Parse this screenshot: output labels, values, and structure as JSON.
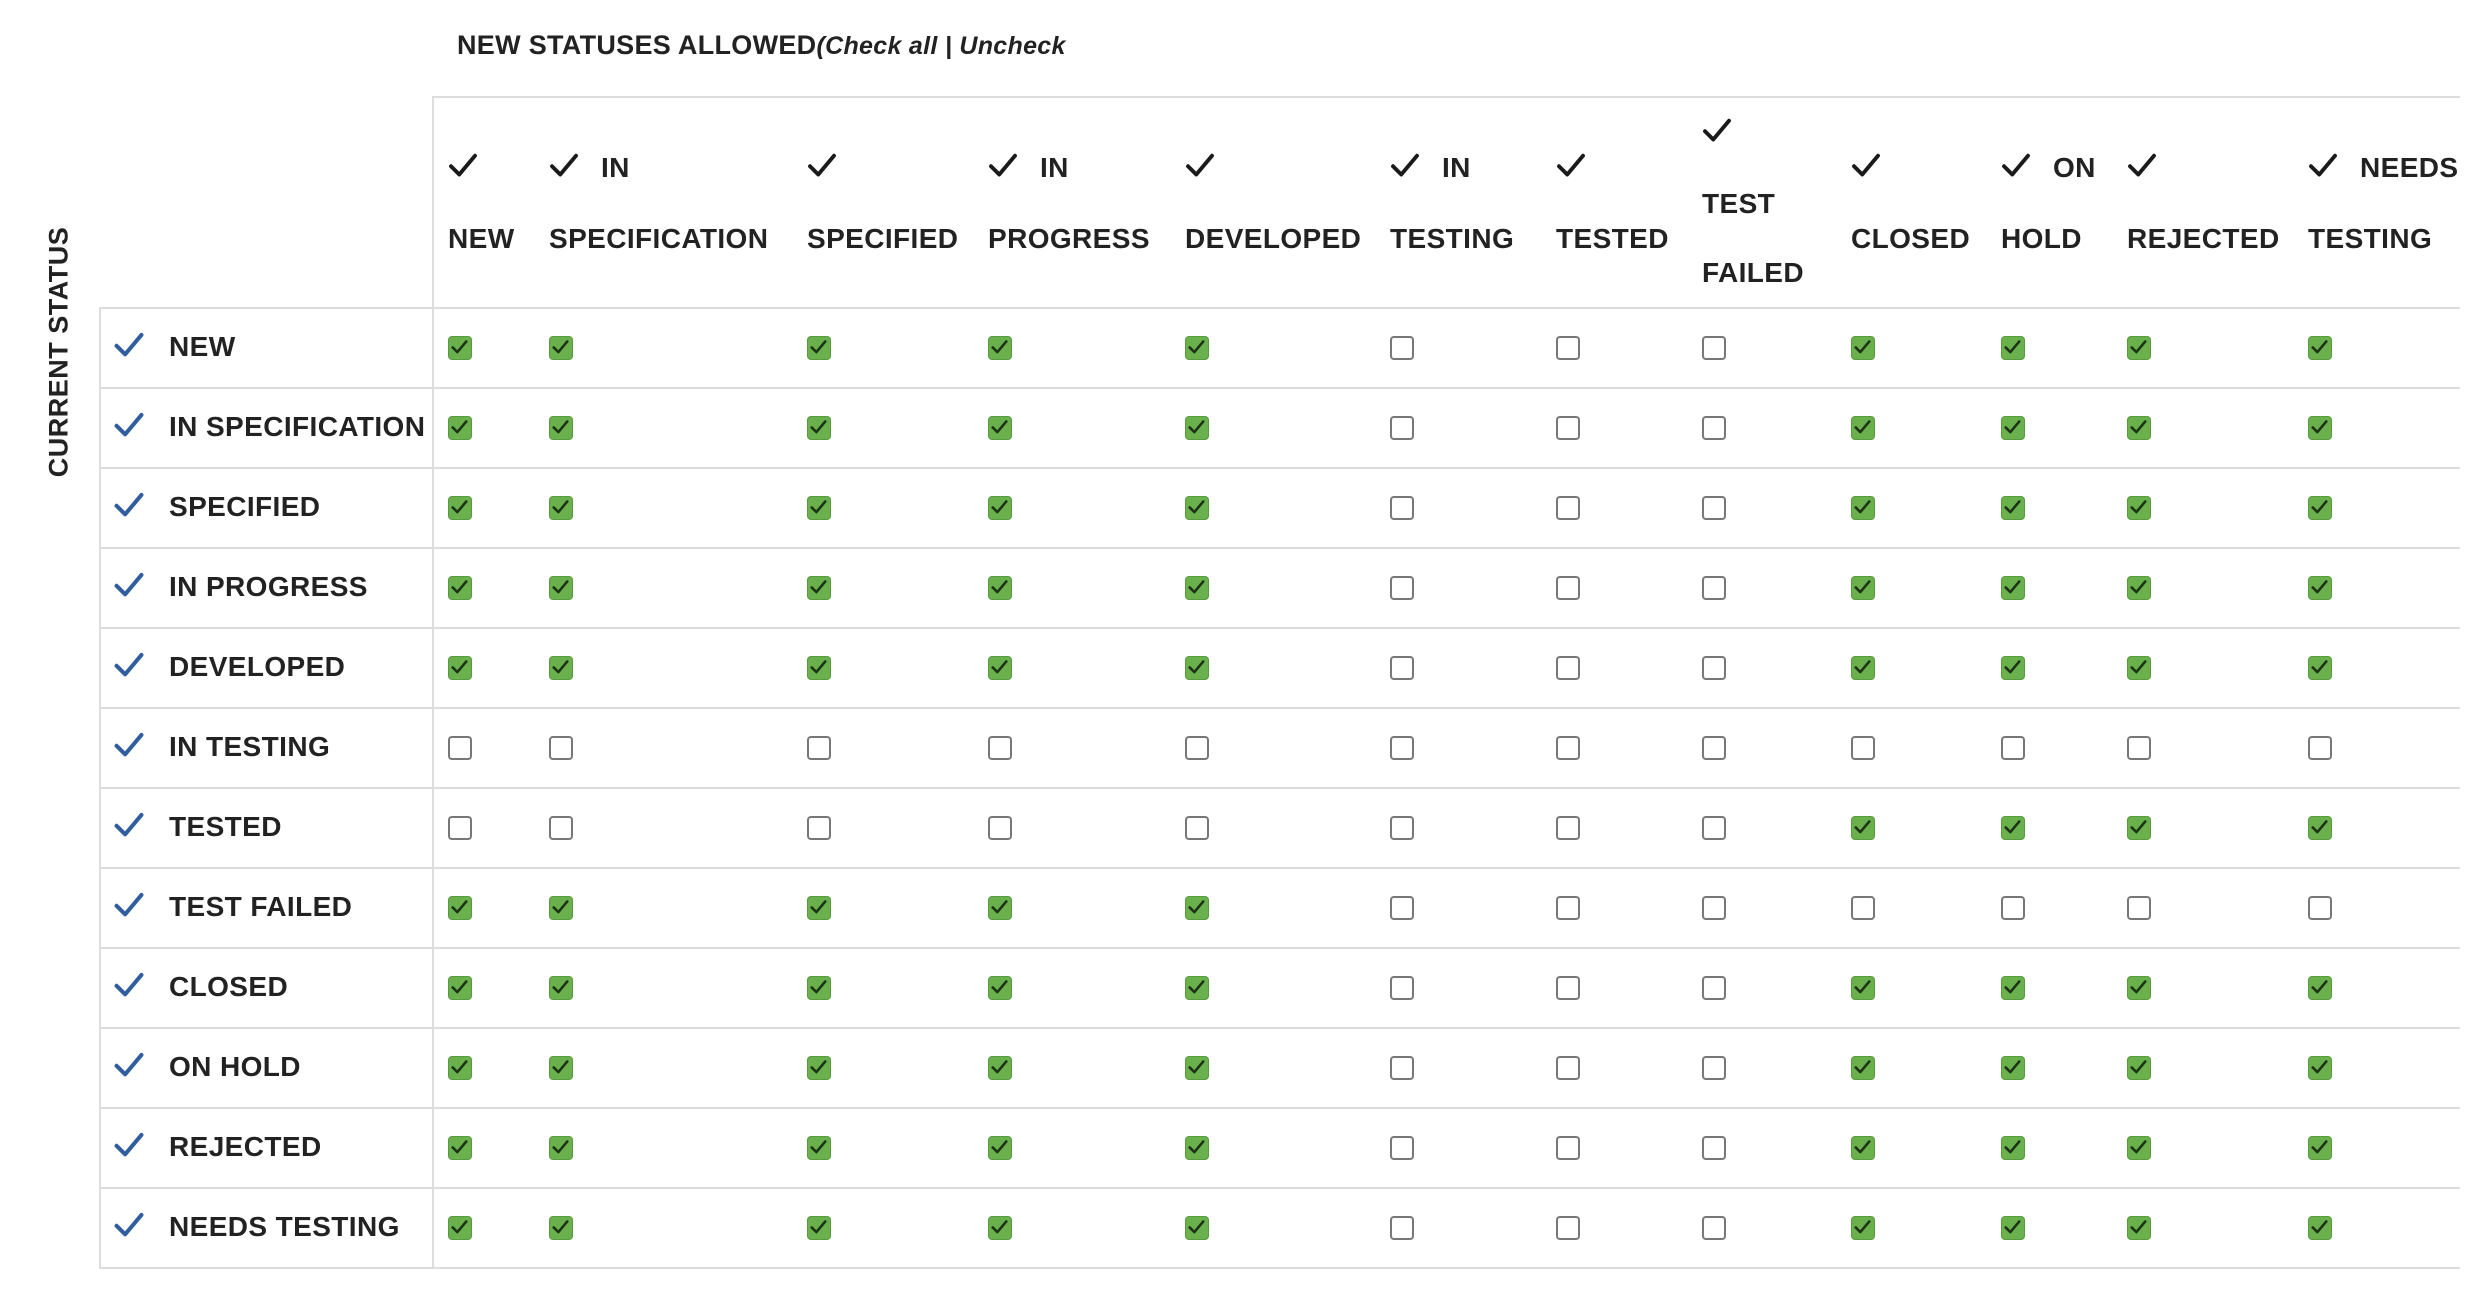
{
  "header": {
    "title": "NEW STATUSES ALLOWED",
    "toggle": "(Check all | Uncheck"
  },
  "side_label": "CURRENT STATUS",
  "columns": [
    "NEW",
    "IN SPECIFICATION",
    "SPECIFIED",
    "IN PROGRESS",
    "DEVELOPED",
    "IN TESTING",
    "TESTED",
    "TEST FAILED",
    "CLOSED",
    "ON HOLD",
    "REJECTED",
    "NEEDS TESTING"
  ],
  "rows": [
    {
      "label": "NEW",
      "allowed": [
        true,
        true,
        true,
        true,
        true,
        false,
        false,
        false,
        true,
        true,
        true,
        true
      ]
    },
    {
      "label": "IN SPECIFICATION",
      "allowed": [
        true,
        true,
        true,
        true,
        true,
        false,
        false,
        false,
        true,
        true,
        true,
        true
      ]
    },
    {
      "label": "SPECIFIED",
      "allowed": [
        true,
        true,
        true,
        true,
        true,
        false,
        false,
        false,
        true,
        true,
        true,
        true
      ]
    },
    {
      "label": "IN PROGRESS",
      "allowed": [
        true,
        true,
        true,
        true,
        true,
        false,
        false,
        false,
        true,
        true,
        true,
        true
      ]
    },
    {
      "label": "DEVELOPED",
      "allowed": [
        true,
        true,
        true,
        true,
        true,
        false,
        false,
        false,
        true,
        true,
        true,
        true
      ]
    },
    {
      "label": "IN TESTING",
      "allowed": [
        false,
        false,
        false,
        false,
        false,
        false,
        false,
        false,
        false,
        false,
        false,
        false
      ]
    },
    {
      "label": "TESTED",
      "allowed": [
        false,
        false,
        false,
        false,
        false,
        false,
        false,
        false,
        true,
        true,
        true,
        true
      ]
    },
    {
      "label": "TEST FAILED",
      "allowed": [
        true,
        true,
        true,
        true,
        true,
        false,
        false,
        false,
        false,
        false,
        false,
        false
      ]
    },
    {
      "label": "CLOSED",
      "allowed": [
        true,
        true,
        true,
        true,
        true,
        false,
        false,
        false,
        true,
        true,
        true,
        true
      ]
    },
    {
      "label": "ON HOLD",
      "allowed": [
        true,
        true,
        true,
        true,
        true,
        false,
        false,
        false,
        true,
        true,
        true,
        true
      ]
    },
    {
      "label": "REJECTED",
      "allowed": [
        true,
        true,
        true,
        true,
        true,
        false,
        false,
        false,
        true,
        true,
        true,
        true
      ]
    },
    {
      "label": "NEEDS TESTING",
      "allowed": [
        true,
        true,
        true,
        true,
        true,
        false,
        false,
        false,
        true,
        true,
        true,
        true
      ]
    }
  ]
}
